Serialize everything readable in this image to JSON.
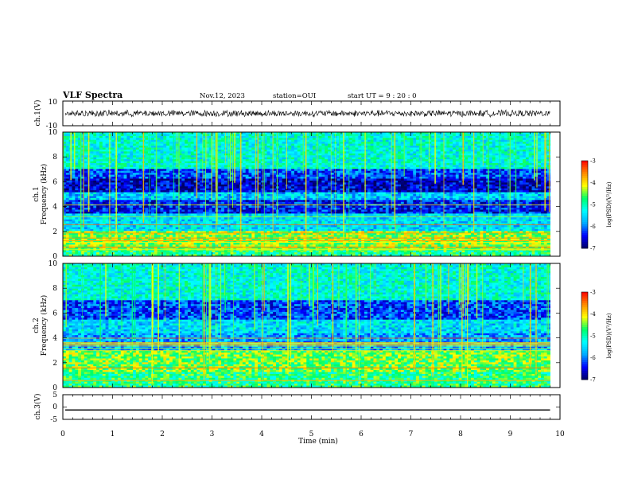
{
  "header": {
    "title": "VLF Spectra",
    "date": "Nov.12, 2023",
    "station": "station=OUI",
    "start": "start  UT =   9 : 20 : 0"
  },
  "colors": {
    "colormap": [
      "#000066",
      "#0000ff",
      "#00aaff",
      "#00ffff",
      "#00ff66",
      "#ffff00",
      "#ff8800",
      "#ff0000",
      "#ffffff"
    ],
    "trace": "#000000"
  },
  "chart_data": [
    {
      "type": "line",
      "name": "ch1-waveform",
      "ylabel": "ch.1(V)",
      "ylim": [
        -10,
        10
      ],
      "yticks": [
        "10",
        "-10"
      ],
      "series": [
        {
          "baseline": 0,
          "amplitude_range": [
            -3,
            3
          ]
        }
      ]
    },
    {
      "type": "heatmap",
      "name": "ch1-spectrogram",
      "ylabel_line1": "ch.1",
      "ylabel_line2": "Frequency (kHz)",
      "ylim": [
        0,
        10
      ],
      "yticks": [
        "0",
        "2",
        "4",
        "6",
        "8",
        "10"
      ],
      "xlim": [
        0,
        10
      ],
      "colorbar": {
        "label": "log(PSD)(V²/Hz)",
        "range": [
          -7,
          -3
        ],
        "ticks": [
          "-3",
          "-4",
          "-5",
          "-6",
          "-7"
        ]
      },
      "bands": [
        {
          "f_low": 0.0,
          "f_high": 0.4,
          "level": 0.55
        },
        {
          "f_low": 0.4,
          "f_high": 2.0,
          "level": 0.65
        },
        {
          "f_low": 2.0,
          "f_high": 3.4,
          "level": 0.38
        },
        {
          "f_low": 3.4,
          "f_high": 4.6,
          "level": 0.15
        },
        {
          "f_low": 4.6,
          "f_high": 5.2,
          "level": 0.35
        },
        {
          "f_low": 5.2,
          "f_high": 6.2,
          "level": 0.1
        },
        {
          "f_low": 6.2,
          "f_high": 7.0,
          "level": 0.2
        },
        {
          "f_low": 7.0,
          "f_high": 10.0,
          "level": 0.45
        }
      ]
    },
    {
      "type": "heatmap",
      "name": "ch2-spectrogram",
      "ylabel_line1": "ch.2",
      "ylabel_line2": "Frequency (kHz)",
      "ylim": [
        0,
        10
      ],
      "yticks": [
        "0",
        "2",
        "4",
        "6",
        "8",
        "10"
      ],
      "xlim": [
        0,
        10
      ],
      "colorbar": {
        "label": "log(PSD)(V²/Hz)",
        "range": [
          -7,
          -3
        ],
        "ticks": [
          "-3",
          "-4",
          "-5",
          "-6",
          "-7"
        ]
      },
      "bands": [
        {
          "f_low": 0.0,
          "f_high": 1.2,
          "level": 0.55
        },
        {
          "f_low": 1.2,
          "f_high": 3.0,
          "level": 0.62
        },
        {
          "f_low": 3.0,
          "f_high": 4.4,
          "level": 0.3
        },
        {
          "f_low": 4.4,
          "f_high": 5.4,
          "level": 0.38
        },
        {
          "f_low": 5.4,
          "f_high": 7.0,
          "level": 0.2
        },
        {
          "f_low": 7.0,
          "f_high": 10.0,
          "level": 0.45
        }
      ]
    },
    {
      "type": "line",
      "name": "ch3-waveform",
      "ylabel": "ch.3(V)",
      "ylim": [
        -5,
        5
      ],
      "yticks": [
        "5",
        "0",
        "-5"
      ],
      "series": [
        {
          "constant": -1.2
        }
      ]
    }
  ],
  "xaxis": {
    "label": "Time (min)",
    "ticks": [
      "0",
      "1",
      "2",
      "3",
      "4",
      "5",
      "6",
      "7",
      "8",
      "9",
      "10"
    ],
    "data_end": 9.8
  }
}
